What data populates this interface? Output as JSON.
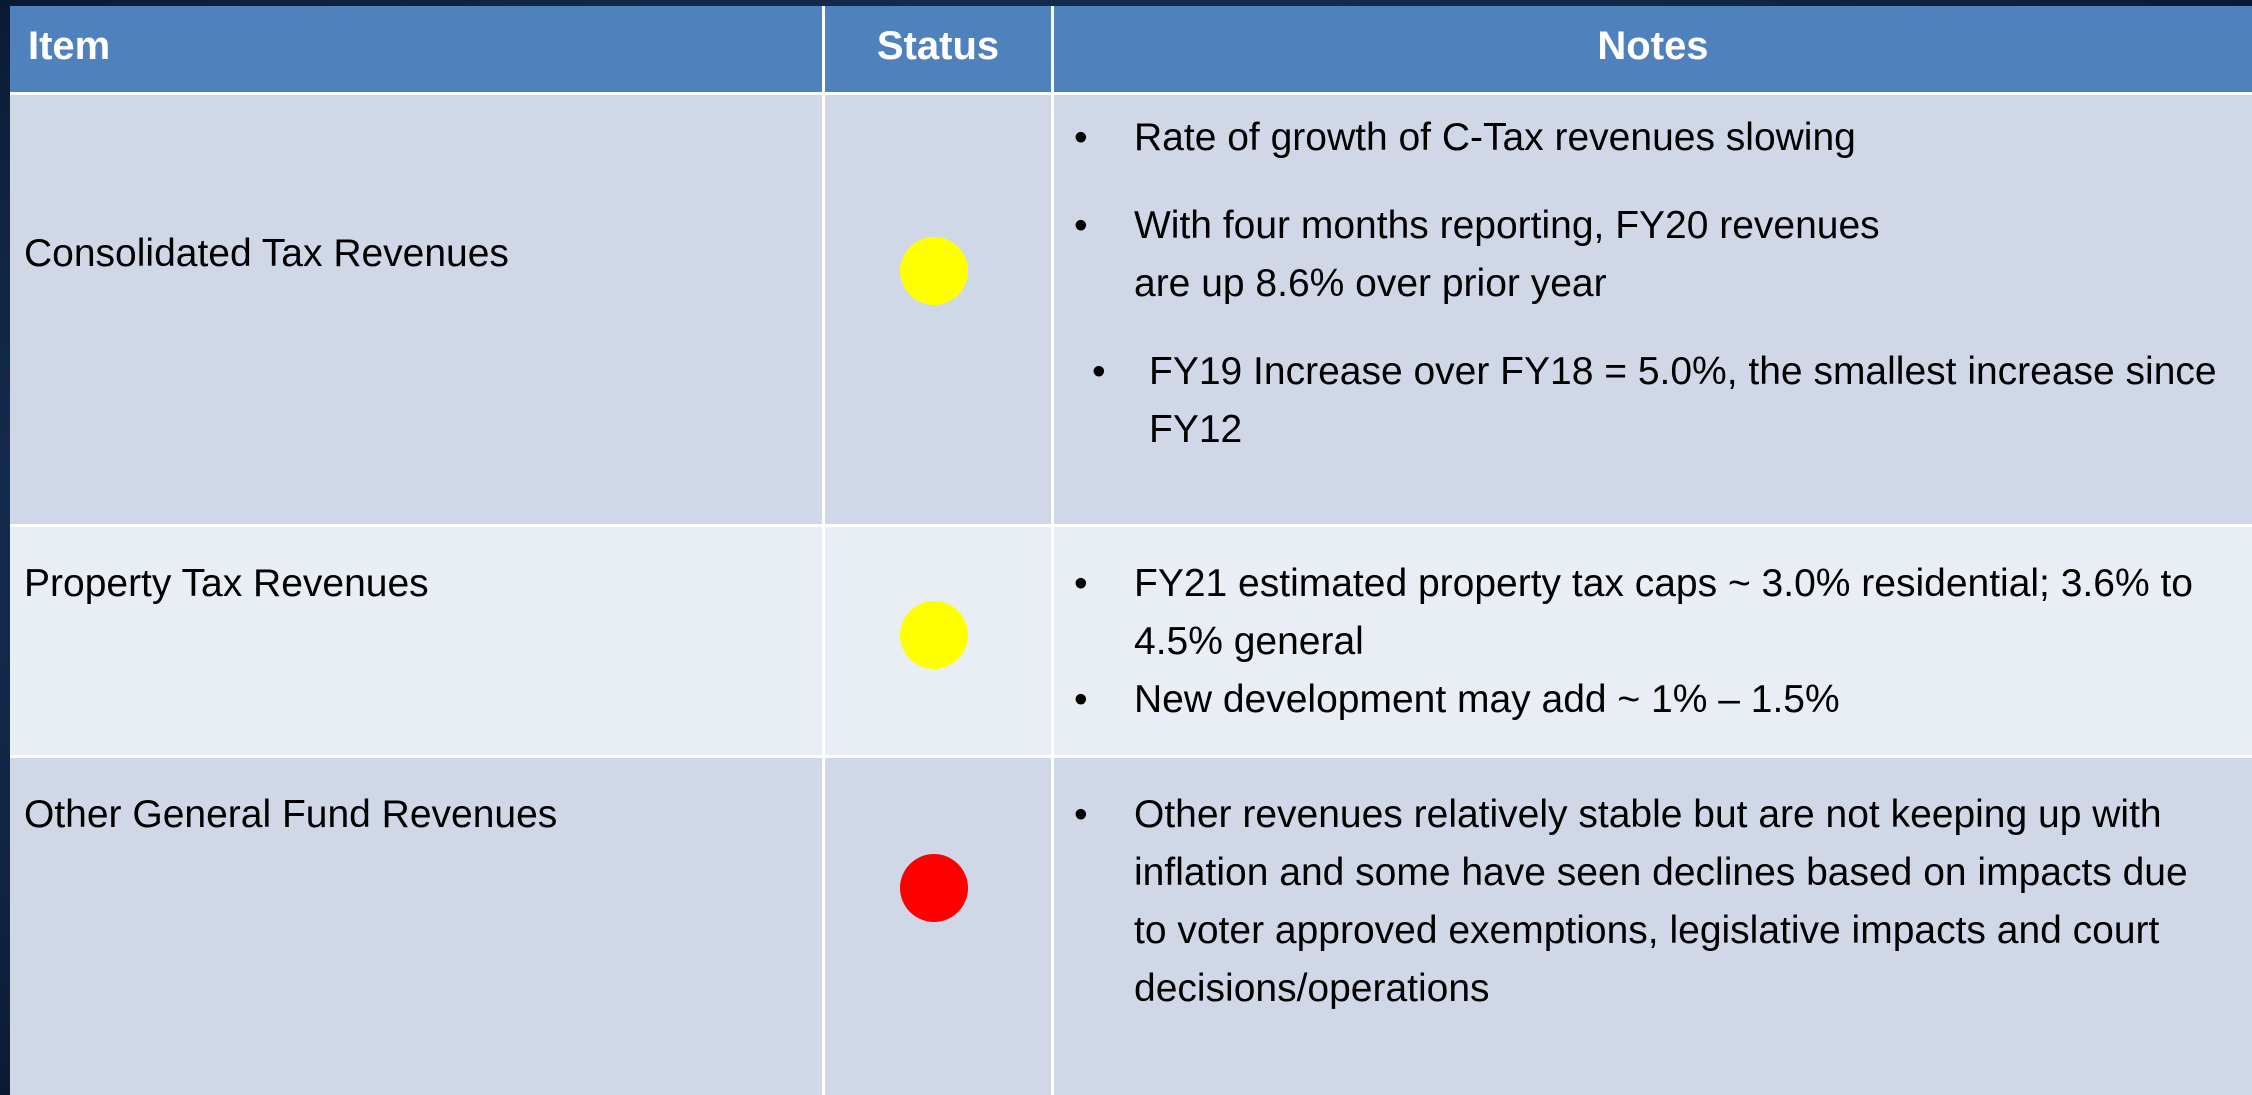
{
  "table": {
    "header": [
      "Item",
      "Status",
      "Notes"
    ],
    "rows": [
      {
        "item": "Consolidated Tax Revenues",
        "status_color": "#ffff00",
        "notes": [
          {
            "text": "Rate of growth of C-Tax revenues slowing"
          },
          {
            "text": "With four months reporting, FY20 revenues\nare up 8.6% over prior year",
            "subnotes": [
              "FY19 Increase over FY18 = 5.0%, the  smallest increase since FY12"
            ]
          }
        ]
      },
      {
        "item": "Property Tax Revenues",
        "status_color": "#ffff00",
        "notes": [
          {
            "text": "FY21 estimated property tax caps ~ 3.0%  residential; 3.6% to 4.5% general"
          },
          {
            "text": "New development may add ~ 1% – 1.5%"
          }
        ]
      },
      {
        "item": "Other General Fund Revenues",
        "status_color": "#ff0000",
        "notes": [
          {
            "text": "Other revenues relatively stable but are not  keeping up with inflation and some have  seen declines based on impacts due to  voter approved exemptions, legislative impacts and court decisions/operations"
          }
        ]
      }
    ]
  }
}
